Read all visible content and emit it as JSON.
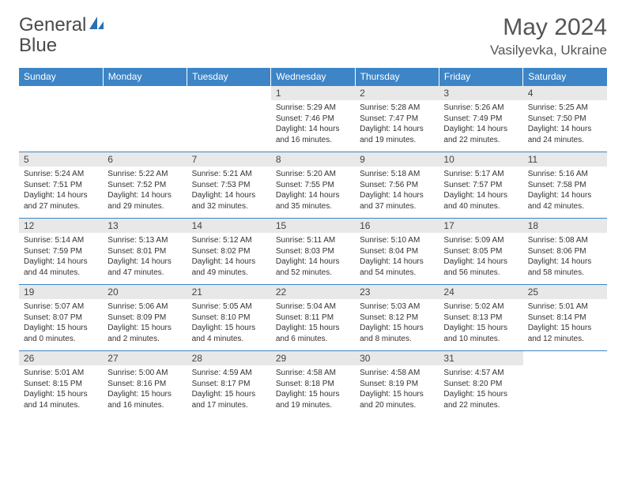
{
  "logo": {
    "text1": "General",
    "text2": "Blue"
  },
  "title": "May 2024",
  "location": "Vasilyevka, Ukraine",
  "colors": {
    "header_bg": "#3d85c6",
    "header_fg": "#ffffff",
    "daynum_bg": "#e8e8e8",
    "border": "#3d85c6",
    "text": "#333333",
    "logo_blue": "#2a6fb5"
  },
  "dayNames": [
    "Sunday",
    "Monday",
    "Tuesday",
    "Wednesday",
    "Thursday",
    "Friday",
    "Saturday"
  ],
  "weeks": [
    [
      null,
      null,
      null,
      {
        "n": "1",
        "sr": "5:29 AM",
        "ss": "7:46 PM",
        "dl": "14 hours and 16 minutes."
      },
      {
        "n": "2",
        "sr": "5:28 AM",
        "ss": "7:47 PM",
        "dl": "14 hours and 19 minutes."
      },
      {
        "n": "3",
        "sr": "5:26 AM",
        "ss": "7:49 PM",
        "dl": "14 hours and 22 minutes."
      },
      {
        "n": "4",
        "sr": "5:25 AM",
        "ss": "7:50 PM",
        "dl": "14 hours and 24 minutes."
      }
    ],
    [
      {
        "n": "5",
        "sr": "5:24 AM",
        "ss": "7:51 PM",
        "dl": "14 hours and 27 minutes."
      },
      {
        "n": "6",
        "sr": "5:22 AM",
        "ss": "7:52 PM",
        "dl": "14 hours and 29 minutes."
      },
      {
        "n": "7",
        "sr": "5:21 AM",
        "ss": "7:53 PM",
        "dl": "14 hours and 32 minutes."
      },
      {
        "n": "8",
        "sr": "5:20 AM",
        "ss": "7:55 PM",
        "dl": "14 hours and 35 minutes."
      },
      {
        "n": "9",
        "sr": "5:18 AM",
        "ss": "7:56 PM",
        "dl": "14 hours and 37 minutes."
      },
      {
        "n": "10",
        "sr": "5:17 AM",
        "ss": "7:57 PM",
        "dl": "14 hours and 40 minutes."
      },
      {
        "n": "11",
        "sr": "5:16 AM",
        "ss": "7:58 PM",
        "dl": "14 hours and 42 minutes."
      }
    ],
    [
      {
        "n": "12",
        "sr": "5:14 AM",
        "ss": "7:59 PM",
        "dl": "14 hours and 44 minutes."
      },
      {
        "n": "13",
        "sr": "5:13 AM",
        "ss": "8:01 PM",
        "dl": "14 hours and 47 minutes."
      },
      {
        "n": "14",
        "sr": "5:12 AM",
        "ss": "8:02 PM",
        "dl": "14 hours and 49 minutes."
      },
      {
        "n": "15",
        "sr": "5:11 AM",
        "ss": "8:03 PM",
        "dl": "14 hours and 52 minutes."
      },
      {
        "n": "16",
        "sr": "5:10 AM",
        "ss": "8:04 PM",
        "dl": "14 hours and 54 minutes."
      },
      {
        "n": "17",
        "sr": "5:09 AM",
        "ss": "8:05 PM",
        "dl": "14 hours and 56 minutes."
      },
      {
        "n": "18",
        "sr": "5:08 AM",
        "ss": "8:06 PM",
        "dl": "14 hours and 58 minutes."
      }
    ],
    [
      {
        "n": "19",
        "sr": "5:07 AM",
        "ss": "8:07 PM",
        "dl": "15 hours and 0 minutes."
      },
      {
        "n": "20",
        "sr": "5:06 AM",
        "ss": "8:09 PM",
        "dl": "15 hours and 2 minutes."
      },
      {
        "n": "21",
        "sr": "5:05 AM",
        "ss": "8:10 PM",
        "dl": "15 hours and 4 minutes."
      },
      {
        "n": "22",
        "sr": "5:04 AM",
        "ss": "8:11 PM",
        "dl": "15 hours and 6 minutes."
      },
      {
        "n": "23",
        "sr": "5:03 AM",
        "ss": "8:12 PM",
        "dl": "15 hours and 8 minutes."
      },
      {
        "n": "24",
        "sr": "5:02 AM",
        "ss": "8:13 PM",
        "dl": "15 hours and 10 minutes."
      },
      {
        "n": "25",
        "sr": "5:01 AM",
        "ss": "8:14 PM",
        "dl": "15 hours and 12 minutes."
      }
    ],
    [
      {
        "n": "26",
        "sr": "5:01 AM",
        "ss": "8:15 PM",
        "dl": "15 hours and 14 minutes."
      },
      {
        "n": "27",
        "sr": "5:00 AM",
        "ss": "8:16 PM",
        "dl": "15 hours and 16 minutes."
      },
      {
        "n": "28",
        "sr": "4:59 AM",
        "ss": "8:17 PM",
        "dl": "15 hours and 17 minutes."
      },
      {
        "n": "29",
        "sr": "4:58 AM",
        "ss": "8:18 PM",
        "dl": "15 hours and 19 minutes."
      },
      {
        "n": "30",
        "sr": "4:58 AM",
        "ss": "8:19 PM",
        "dl": "15 hours and 20 minutes."
      },
      {
        "n": "31",
        "sr": "4:57 AM",
        "ss": "8:20 PM",
        "dl": "15 hours and 22 minutes."
      },
      null
    ]
  ],
  "labels": {
    "sunrise": "Sunrise:",
    "sunset": "Sunset:",
    "daylight": "Daylight:"
  }
}
